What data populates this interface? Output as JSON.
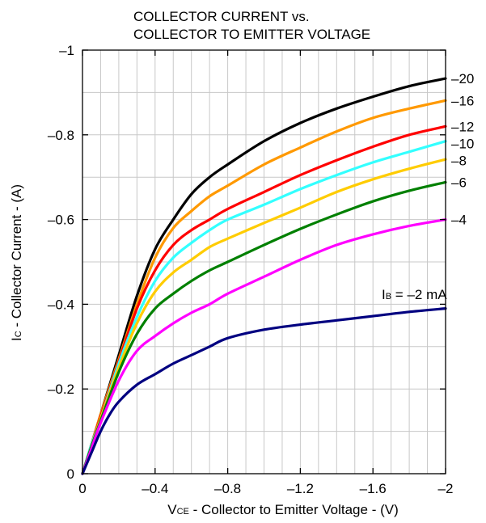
{
  "chart_data": {
    "type": "line",
    "title_lines": [
      "COLLECTOR CURRENT vs.",
      "COLLECTOR TO EMITTER VOLTAGE"
    ],
    "xlabel": {
      "main": "V",
      "sub": "CE",
      "rest": " - Collector to Emitter Voltage - (V)"
    },
    "ylabel": {
      "main": "I",
      "sub": "C",
      "rest": " - Collector Current - (A)"
    },
    "xlim": [
      0,
      -2
    ],
    "ylim": [
      0,
      -1
    ],
    "x_minor_step": -0.1,
    "y_minor_step": -0.1,
    "x_ticks": [
      {
        "value": 0,
        "label": "0"
      },
      {
        "value": -0.4,
        "label": "–0.4"
      },
      {
        "value": -0.8,
        "label": "–0.8"
      },
      {
        "value": -1.2,
        "label": "–1.2"
      },
      {
        "value": -1.6,
        "label": "–1.6"
      },
      {
        "value": -2.0,
        "label": "–2"
      }
    ],
    "y_ticks": [
      {
        "value": 0,
        "label": "0"
      },
      {
        "value": -0.2,
        "label": "–0.2"
      },
      {
        "value": -0.4,
        "label": "–0.4"
      },
      {
        "value": -0.6,
        "label": "–0.6"
      },
      {
        "value": -0.8,
        "label": "–0.8"
      },
      {
        "value": -1.0,
        "label": "–1"
      }
    ],
    "grid": true,
    "curve_annotation": {
      "main": "I",
      "sub": "B",
      "rest": " = –2 mA"
    },
    "series": [
      {
        "label": "–20",
        "color": "#000000",
        "x": [
          0,
          -0.05,
          -0.1,
          -0.2,
          -0.3,
          -0.4,
          -0.5,
          -0.6,
          -0.7,
          -0.8,
          -1.0,
          -1.2,
          -1.4,
          -1.6,
          -1.8,
          -2.0
        ],
        "y": [
          0,
          -0.07,
          -0.14,
          -0.28,
          -0.42,
          -0.53,
          -0.6,
          -0.66,
          -0.7,
          -0.73,
          -0.785,
          -0.828,
          -0.862,
          -0.89,
          -0.915,
          -0.933
        ]
      },
      {
        "label": "–16",
        "color": "#FF9900",
        "x": [
          0,
          -0.05,
          -0.1,
          -0.2,
          -0.3,
          -0.4,
          -0.5,
          -0.6,
          -0.7,
          -0.8,
          -1.0,
          -1.2,
          -1.4,
          -1.6,
          -1.8,
          -2.0
        ],
        "y": [
          0,
          -0.07,
          -0.14,
          -0.27,
          -0.4,
          -0.51,
          -0.58,
          -0.62,
          -0.655,
          -0.68,
          -0.73,
          -0.77,
          -0.808,
          -0.84,
          -0.862,
          -0.881
        ]
      },
      {
        "label": "–12",
        "color": "#FF0000",
        "x": [
          0,
          -0.05,
          -0.1,
          -0.2,
          -0.3,
          -0.4,
          -0.5,
          -0.6,
          -0.7,
          -0.8,
          -1.0,
          -1.2,
          -1.4,
          -1.6,
          -1.8,
          -2.0
        ],
        "y": [
          0,
          -0.07,
          -0.135,
          -0.265,
          -0.39,
          -0.48,
          -0.54,
          -0.575,
          -0.6,
          -0.625,
          -0.665,
          -0.705,
          -0.74,
          -0.772,
          -0.8,
          -0.82
        ]
      },
      {
        "label": "–10",
        "color": "#33FFFF",
        "x": [
          0,
          -0.05,
          -0.1,
          -0.2,
          -0.3,
          -0.4,
          -0.5,
          -0.6,
          -0.7,
          -0.8,
          -1.0,
          -1.2,
          -1.4,
          -1.6,
          -1.8,
          -2.0
        ],
        "y": [
          0,
          -0.07,
          -0.13,
          -0.26,
          -0.37,
          -0.455,
          -0.51,
          -0.545,
          -0.575,
          -0.6,
          -0.635,
          -0.672,
          -0.705,
          -0.735,
          -0.76,
          -0.785
        ]
      },
      {
        "label": "–8",
        "color": "#FFCC00",
        "x": [
          0,
          -0.05,
          -0.1,
          -0.2,
          -0.3,
          -0.4,
          -0.5,
          -0.6,
          -0.7,
          -0.8,
          -1.0,
          -1.2,
          -1.4,
          -1.6,
          -1.8,
          -2.0
        ],
        "y": [
          0,
          -0.065,
          -0.13,
          -0.25,
          -0.355,
          -0.43,
          -0.475,
          -0.505,
          -0.535,
          -0.555,
          -0.592,
          -0.628,
          -0.665,
          -0.695,
          -0.72,
          -0.742
        ]
      },
      {
        "label": "–6",
        "color": "#008000",
        "x": [
          0,
          -0.05,
          -0.1,
          -0.2,
          -0.3,
          -0.4,
          -0.5,
          -0.6,
          -0.7,
          -0.8,
          -1.0,
          -1.2,
          -1.4,
          -1.6,
          -1.8,
          -2.0
        ],
        "y": [
          0,
          -0.065,
          -0.125,
          -0.24,
          -0.33,
          -0.39,
          -0.425,
          -0.455,
          -0.48,
          -0.5,
          -0.54,
          -0.578,
          -0.612,
          -0.643,
          -0.668,
          -0.688
        ]
      },
      {
        "label": "–4",
        "color": "#FF00FF",
        "x": [
          0,
          -0.05,
          -0.1,
          -0.2,
          -0.3,
          -0.4,
          -0.5,
          -0.6,
          -0.7,
          -0.8,
          -1.0,
          -1.2,
          -1.4,
          -1.6,
          -1.8,
          -2.0
        ],
        "y": [
          0,
          -0.06,
          -0.12,
          -0.22,
          -0.29,
          -0.325,
          -0.355,
          -0.38,
          -0.4,
          -0.425,
          -0.465,
          -0.505,
          -0.54,
          -0.565,
          -0.585,
          -0.6
        ]
      },
      {
        "label": "",
        "color": "#000080",
        "x": [
          0,
          -0.05,
          -0.1,
          -0.15,
          -0.2,
          -0.3,
          -0.4,
          -0.5,
          -0.6,
          -0.7,
          -0.8,
          -1.0,
          -1.2,
          -1.4,
          -1.6,
          -1.8,
          -2.0
        ],
        "y": [
          0,
          -0.05,
          -0.1,
          -0.14,
          -0.17,
          -0.21,
          -0.235,
          -0.26,
          -0.28,
          -0.3,
          -0.32,
          -0.34,
          -0.352,
          -0.362,
          -0.372,
          -0.382,
          -0.39
        ]
      }
    ]
  }
}
